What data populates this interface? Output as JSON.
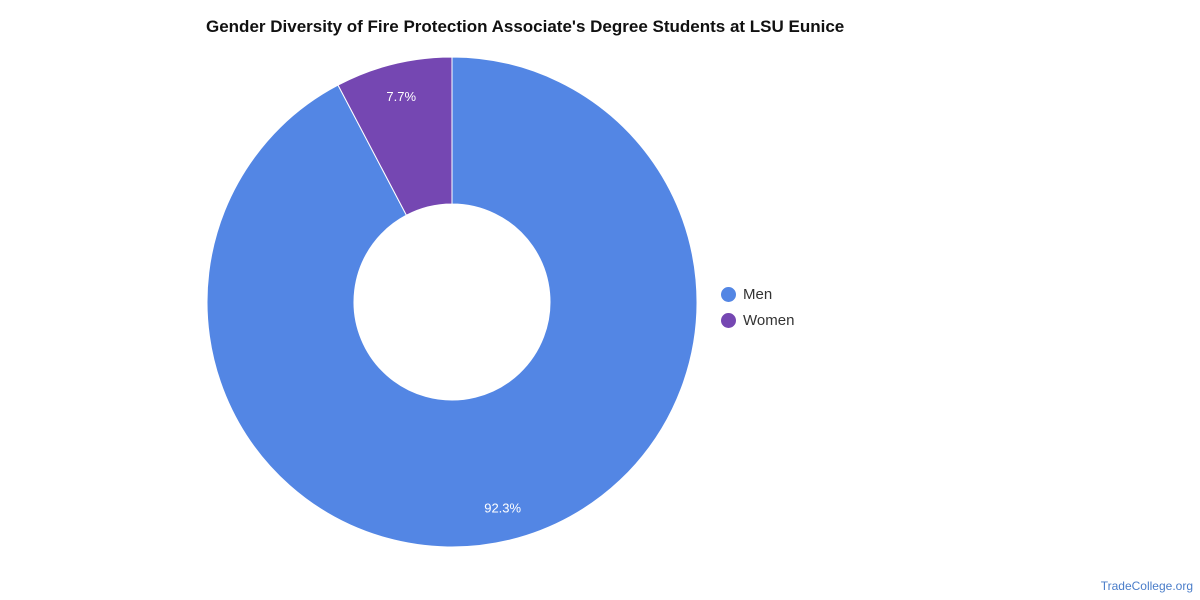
{
  "chart_data": {
    "type": "pie",
    "donut": true,
    "title": "Gender Diversity of Fire Protection Associate's Degree Students at LSU Eunice",
    "categories": [
      "Men",
      "Women"
    ],
    "values": [
      92.3,
      7.7
    ],
    "value_labels": [
      "92.3%",
      "7.7%"
    ],
    "colors": [
      "#5386e4",
      "#7547b2"
    ],
    "legend_position": "right"
  },
  "legend": {
    "items": [
      {
        "label": "Men",
        "color": "#5386e4"
      },
      {
        "label": "Women",
        "color": "#7547b2"
      }
    ]
  },
  "source": "TradeCollege.org"
}
